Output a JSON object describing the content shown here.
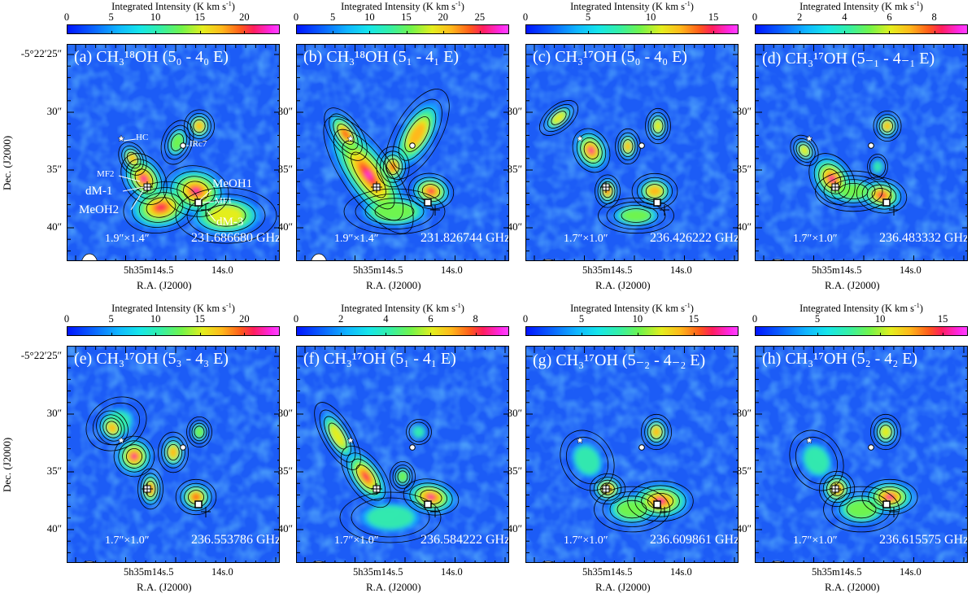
{
  "colorbar_title_kms": "Integrated Intensity (K km s",
  "colorbar_title_mks": "Integrated Intensity (K mk s",
  "colorbar_title_sup": "-1",
  "colorbar_title_close": ")",
  "x_axis_label": "R.A. (J2000)",
  "y_axis_label": "Dec. (J2000)",
  "ra_tick_1": "5h35m14s.5",
  "ra_tick_2": "14s.0",
  "dec_ticks": [
    "-5°22′25″",
    "30″",
    "35″",
    "40″"
  ],
  "source_labels": {
    "hc": "HC",
    "irc7": "IRc7",
    "mf2": "MF2",
    "dm1": "dM-1",
    "meoh2": "MeOH2",
    "meoh1": "MeOH1",
    "mf1": "MF1",
    "dm3": "dM-3"
  },
  "colormap": [
    "#0015ff",
    "#10b6ff",
    "#34f0a6",
    "#72f44a",
    "#e4ee1e",
    "#ffb81a",
    "#ff5a1a",
    "#ff1e5e",
    "#ff40ff"
  ],
  "chart_data": [
    {
      "type": "heatmap",
      "panel": "(a)",
      "molecule": "CH3 18OH",
      "transition": "(50 - 40 E)",
      "title": "(a) CH₃¹⁸OH (5₀ - 4₀ E)",
      "frequency": "231.686680 GHz",
      "beam": "1.9″×1.4″",
      "unit": "K km s-1",
      "colorbar_ticks": [
        0,
        5,
        10,
        15,
        20
      ],
      "colorbar_range": [
        0,
        24
      ]
    },
    {
      "type": "heatmap",
      "panel": "(b)",
      "molecule": "CH3 18OH",
      "transition": "(51 - 41 E)",
      "title": "(b) CH₃¹⁸OH (5₁ - 4₁ E)",
      "frequency": "231.826744 GHz",
      "beam": "1.9″×1.4″",
      "unit": "K km s-1",
      "colorbar_ticks": [
        0,
        5,
        10,
        15,
        20,
        25
      ],
      "colorbar_range": [
        0,
        29
      ]
    },
    {
      "type": "heatmap",
      "panel": "(c)",
      "molecule": "CH3 17OH",
      "transition": "(50 - 40 E)",
      "title": "(c) CH₃¹⁷OH (5₀ - 4₀ E)",
      "frequency": "236.426222 GHz",
      "beam": "1.7″×1.0″",
      "unit": "K km s-1",
      "colorbar_ticks": [
        0,
        5,
        10,
        15
      ],
      "colorbar_range": [
        0,
        17
      ]
    },
    {
      "type": "heatmap",
      "panel": "(d)",
      "molecule": "CH3 17OH",
      "transition": "(5-1 - 4-1 E)",
      "title": "(d) CH₃¹⁷OH (5₋₁ - 4₋₁ E)",
      "frequency": "236.483332 GHz",
      "beam": "1.7″×1.0″",
      "unit": "K mk s-1",
      "colorbar_ticks": [
        0,
        2,
        4,
        6,
        8
      ],
      "colorbar_range": [
        0,
        9.5
      ]
    },
    {
      "type": "heatmap",
      "panel": "(e)",
      "molecule": "CH3 17OH",
      "transition": "(53 - 43 E)",
      "title": "(e) CH₃¹⁷OH (5₃ - 4₃ E)",
      "frequency": "236.553786 GHz",
      "beam": "1.7″×1.0″",
      "unit": "K km s-1",
      "colorbar_ticks": [
        0,
        5,
        10,
        15,
        20
      ],
      "colorbar_range": [
        0,
        24
      ]
    },
    {
      "type": "heatmap",
      "panel": "(f)",
      "molecule": "CH3 17OH",
      "transition": "(51 - 41 E)",
      "title": "(f) CH₃¹⁷OH (5₁ - 4₁ E)",
      "frequency": "236.584222 GHz",
      "beam": "1.7″×1.0″",
      "unit": "K km s-1",
      "colorbar_ticks": [
        0,
        2,
        4,
        6,
        8
      ],
      "colorbar_range": [
        0,
        9.5
      ]
    },
    {
      "type": "heatmap",
      "panel": "(g)",
      "molecule": "CH3 17OH",
      "transition": "(5-2 - 4-2 E)",
      "title": "(g) CH₃¹⁷OH (5₋₂ - 4₋₂ E)",
      "frequency": "236.609861 GHz",
      "beam": "1.7″×1.0″",
      "unit": "K km s-1",
      "colorbar_ticks": [
        0,
        5,
        10,
        15
      ],
      "colorbar_range": [
        0,
        19
      ]
    },
    {
      "type": "heatmap",
      "panel": "(h)",
      "molecule": "CH3 17OH",
      "transition": "(52 - 42 E)",
      "title": "(h) CH₃¹⁷OH (5₂ - 4₂ E)",
      "frequency": "236.615575 GHz",
      "beam": "1.7″×1.0″",
      "unit": "K km s-1",
      "colorbar_ticks": [
        0,
        5,
        10,
        15
      ],
      "colorbar_range": [
        0,
        17
      ]
    }
  ]
}
